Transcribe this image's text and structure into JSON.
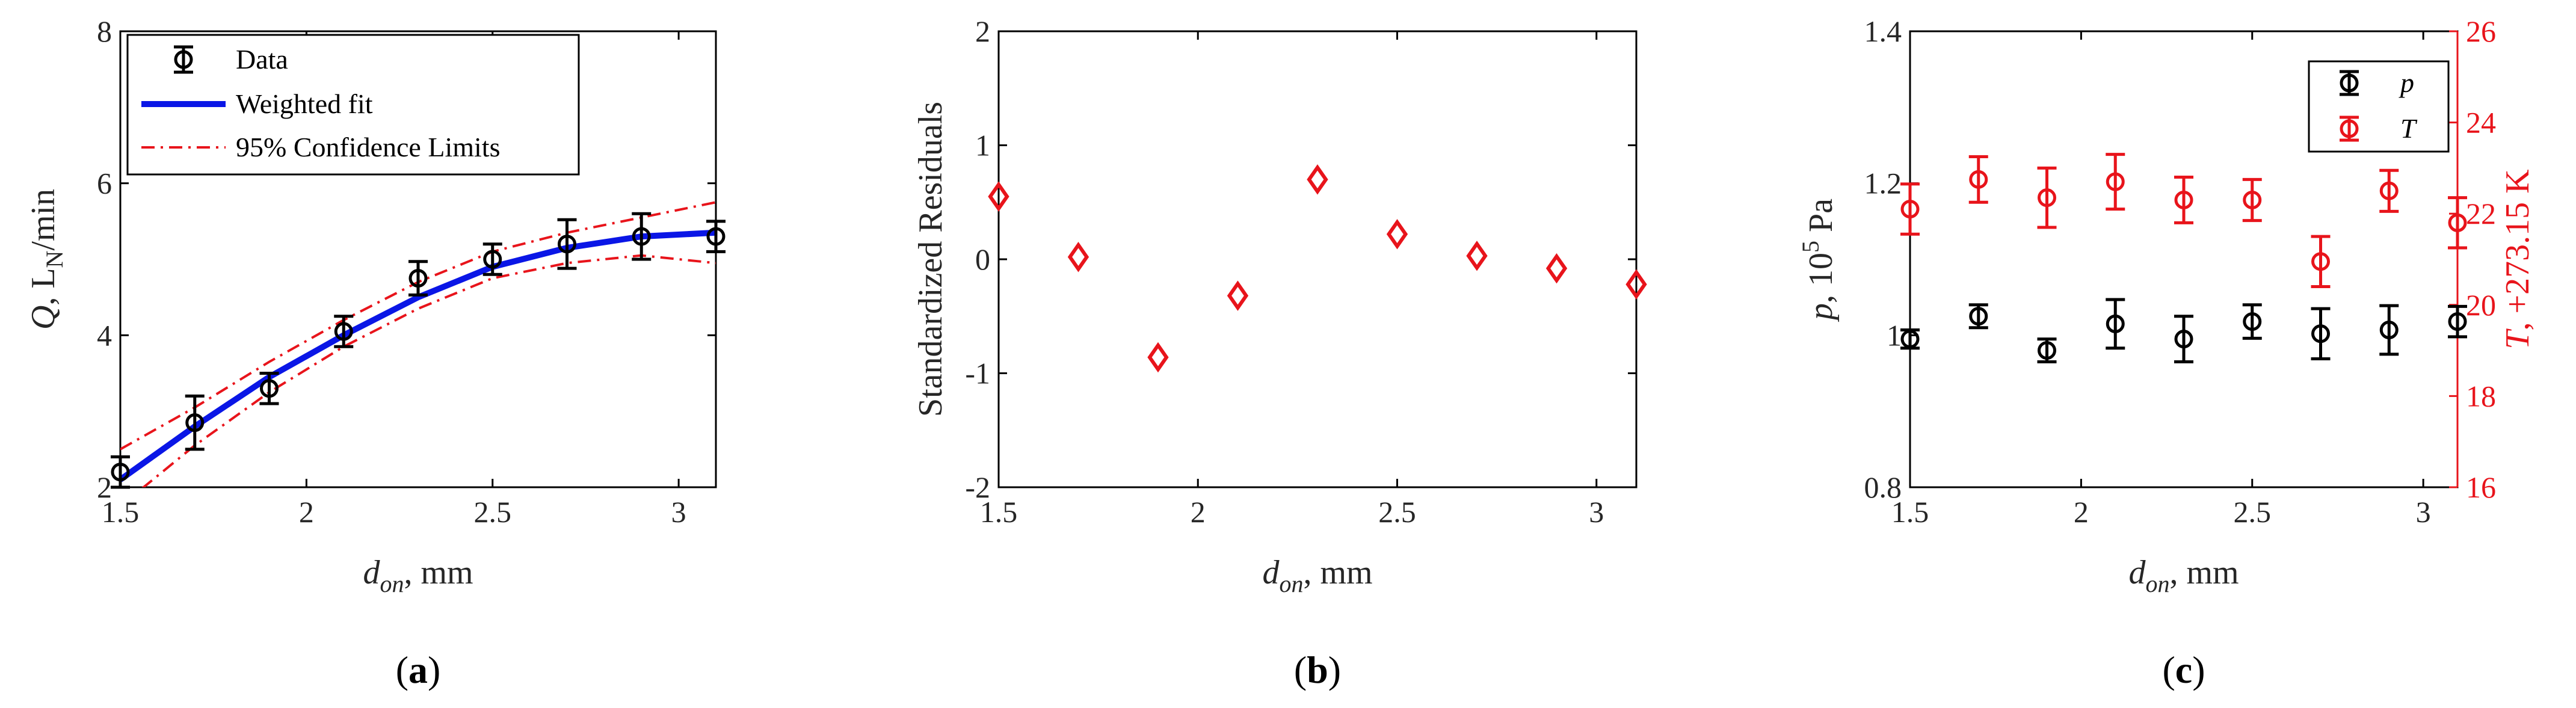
{
  "chart_data": [
    {
      "type": "scatter",
      "panel_label": {
        "open": "(",
        "letter": "a",
        "close": ")"
      },
      "xlabel": {
        "var": "d",
        "sub": "on",
        "suffix": ", mm"
      },
      "ylabel": {
        "var": "Q",
        "mid": ", L",
        "sub": "N",
        "suffix": "/min"
      },
      "xlim": [
        1.5,
        3.1
      ],
      "ylim": [
        2,
        8
      ],
      "xticks": [
        "1.5",
        "2",
        "2.5",
        "3"
      ],
      "yticks": [
        "2",
        "4",
        "6",
        "8"
      ],
      "legend": {
        "position": "top-left",
        "entries": [
          "Data",
          "Weighted fit",
          "95% Confidence Limits"
        ]
      },
      "colors": {
        "data": "#000000",
        "fit": "#0a16e6",
        "confidence": "#e8141b"
      },
      "series": [
        {
          "name": "Data",
          "x": [
            1.5,
            1.7,
            1.9,
            2.1,
            2.3,
            2.5,
            2.7,
            2.9,
            3.1
          ],
          "y": [
            2.2,
            2.85,
            3.3,
            4.05,
            4.75,
            5.0,
            5.2,
            5.3,
            5.3
          ],
          "err": [
            0.2,
            0.35,
            0.2,
            0.2,
            0.22,
            0.2,
            0.32,
            0.3,
            0.2
          ]
        },
        {
          "name": "Weighted fit",
          "x": [
            1.5,
            1.7,
            1.9,
            2.1,
            2.3,
            2.5,
            2.7,
            2.9,
            3.1
          ],
          "y": [
            2.1,
            2.8,
            3.45,
            4.0,
            4.5,
            4.9,
            5.15,
            5.3,
            5.35
          ]
        },
        {
          "name": "95% Confidence Limits",
          "x": [
            1.5,
            1.7,
            1.9,
            2.1,
            2.3,
            2.5,
            2.7,
            2.9,
            3.1
          ],
          "y_upper": [
            2.5,
            3.05,
            3.65,
            4.2,
            4.7,
            5.1,
            5.35,
            5.55,
            5.75
          ],
          "y_lower": [
            1.75,
            2.55,
            3.25,
            3.85,
            4.35,
            4.75,
            4.95,
            5.05,
            4.95
          ]
        }
      ]
    },
    {
      "type": "scatter",
      "panel_label": {
        "open": "(",
        "letter": "b",
        "close": ")"
      },
      "xlabel": {
        "var": "d",
        "sub": "on",
        "suffix": ", mm"
      },
      "ylabel": "Standardized Residuals",
      "xlim": [
        1.5,
        3.1
      ],
      "ylim": [
        -2,
        2
      ],
      "xticks": [
        "1.5",
        "2",
        "2.5",
        "3"
      ],
      "yticks": [
        "-2",
        "-1",
        "0",
        "1",
        "2"
      ],
      "colors": {
        "marker": "#e8141b"
      },
      "series": [
        {
          "x": [
            1.5,
            1.7,
            1.9,
            2.1,
            2.3,
            2.5,
            2.7,
            2.9,
            3.1
          ],
          "y": [
            0.55,
            0.02,
            -0.86,
            -0.32,
            0.7,
            0.22,
            0.03,
            -0.08,
            -0.22
          ]
        }
      ]
    },
    {
      "type": "scatter",
      "panel_label": {
        "open": "(",
        "letter": "c",
        "close": ")"
      },
      "xlabel": {
        "var": "d",
        "sub": "on",
        "suffix": ", mm"
      },
      "ylabel": {
        "var": "p",
        "mid": ", 10",
        "sup": "5",
        "suffix": " Pa"
      },
      "y2label": {
        "var": "T",
        "suffix": ", +273.15 K"
      },
      "xlim": [
        1.5,
        3.1
      ],
      "ylim": [
        0.8,
        1.4
      ],
      "y2lim": [
        16,
        26
      ],
      "xticks": [
        "1.5",
        "2",
        "2.5",
        "3"
      ],
      "yticks": [
        "0.8",
        "1",
        "1.2",
        "1.4"
      ],
      "y2ticks": [
        "16",
        "18",
        "20",
        "22",
        "24",
        "26"
      ],
      "legend": {
        "position": "top-right",
        "entries": [
          "p",
          "T"
        ]
      },
      "colors": {
        "p": "#000000",
        "T": "#e8141b"
      },
      "series": [
        {
          "name": "p",
          "axis": "left",
          "x": [
            1.5,
            1.7,
            1.9,
            2.1,
            2.3,
            2.5,
            2.7,
            2.9,
            3.1
          ],
          "y": [
            0.995,
            1.025,
            0.98,
            1.015,
            0.995,
            1.018,
            1.002,
            1.007,
            1.018
          ],
          "err": [
            0.012,
            0.015,
            0.015,
            0.032,
            0.03,
            0.022,
            0.033,
            0.032,
            0.02
          ]
        },
        {
          "name": "T",
          "axis": "right",
          "x": [
            1.5,
            1.7,
            1.9,
            2.1,
            2.3,
            2.5,
            2.7,
            2.9,
            3.1
          ],
          "y": [
            22.1,
            22.75,
            22.35,
            22.7,
            22.3,
            22.3,
            20.95,
            22.5,
            21.8
          ],
          "err": [
            0.55,
            0.5,
            0.65,
            0.6,
            0.5,
            0.45,
            0.55,
            0.45,
            0.55
          ]
        }
      ]
    }
  ]
}
